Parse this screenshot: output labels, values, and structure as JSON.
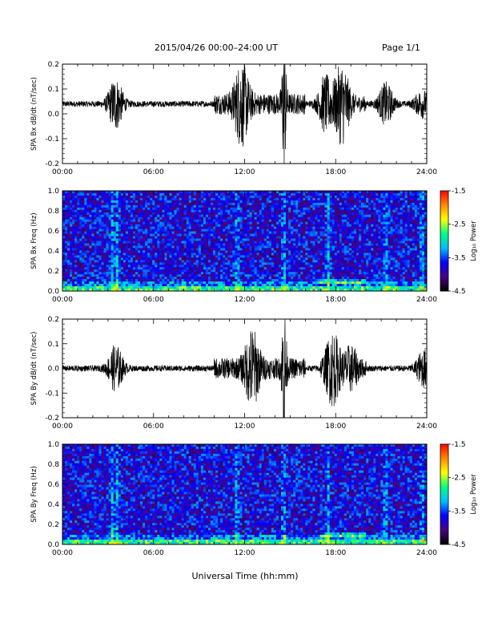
{
  "header": {
    "title": "2015/04/26  00:00–24:00 UT",
    "page": "Page 1/1"
  },
  "xaxis": {
    "label": "Universal Time (hh:mm)",
    "ticks": [
      "00:00",
      "06:00",
      "12:00",
      "18:00",
      "24:00"
    ]
  },
  "colorbar": {
    "label": "Log₁₀ Power",
    "ticks": [
      "-1.5",
      "-2.5",
      "-3.5",
      "-4.5"
    ],
    "range": [
      -4.5,
      -1.5
    ],
    "colors": [
      "#000000",
      "#4b0082",
      "#0000ff",
      "#00bfff",
      "#00ff7f",
      "#ffff00",
      "#ff8c00",
      "#ff0000"
    ]
  },
  "chart_data": [
    {
      "type": "line",
      "ylabel": "SPA Bx dB/dt (nT/sec)",
      "xlim": [
        0,
        24
      ],
      "ylim": [
        -0.2,
        0.2
      ],
      "yticks": [
        "0.2",
        "0.1",
        "0.0",
        "-0.1",
        "-0.2"
      ],
      "baseline": 0.04,
      "events": [
        {
          "t": 3.5,
          "amp": 0.1
        },
        {
          "t": 11.8,
          "amp": 0.14
        },
        {
          "t": 14.6,
          "amp": 0.25
        },
        {
          "t": 17.3,
          "amp": 0.09
        },
        {
          "t": 18.4,
          "amp": 0.14
        },
        {
          "t": 21.3,
          "amp": 0.08
        },
        {
          "t": 23.7,
          "amp": 0.05
        }
      ]
    },
    {
      "type": "heatmap",
      "ylabel": "SPA Bx Freq (Hz)",
      "xlim": [
        0,
        24
      ],
      "ylim": [
        0,
        1
      ],
      "yticks": [
        "1.0",
        "0.8",
        "0.6",
        "0.4",
        "0.2",
        "0.0"
      ],
      "zlim": [
        -4.5,
        -1.5
      ],
      "zlabel": "Log₁₀ Power"
    },
    {
      "type": "line",
      "ylabel": "SPA By dB/dt (nT/sec)",
      "xlim": [
        0,
        24
      ],
      "ylim": [
        -0.2,
        0.2
      ],
      "yticks": [
        "0.2",
        "0.1",
        "0.0",
        "-0.1",
        "-0.2"
      ],
      "baseline": 0.0,
      "events": [
        {
          "t": 3.5,
          "amp": 0.09
        },
        {
          "t": 12.5,
          "amp": 0.13
        },
        {
          "t": 14.6,
          "amp": 0.25
        },
        {
          "t": 17.8,
          "amp": 0.13
        },
        {
          "t": 19.0,
          "amp": 0.07
        },
        {
          "t": 23.8,
          "amp": 0.07
        }
      ]
    },
    {
      "type": "heatmap",
      "ylabel": "SPA By Freq (Hz)",
      "xlim": [
        0,
        24
      ],
      "ylim": [
        0,
        1
      ],
      "yticks": [
        "1.0",
        "0.8",
        "0.6",
        "0.4",
        "0.2",
        "0.0"
      ],
      "zlim": [
        -4.5,
        -1.5
      ],
      "zlabel": "Log₁₀ Power"
    }
  ]
}
